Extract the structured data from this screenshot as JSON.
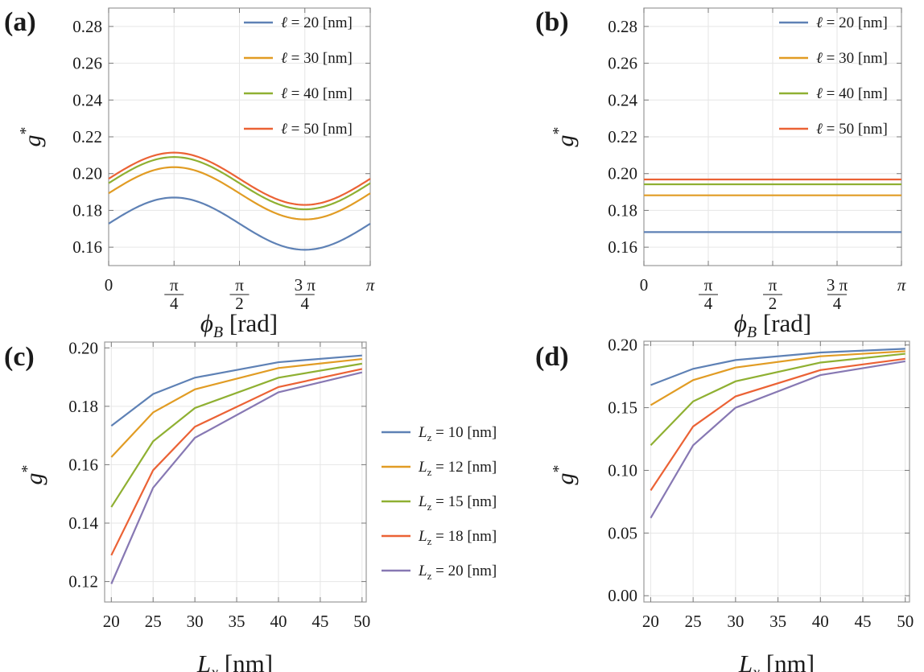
{
  "colors": {
    "blue": "#5e81b5",
    "orange": "#e19c24",
    "green": "#8fb032",
    "red": "#eb6235",
    "purple": "#8778b3"
  },
  "chart_data": [
    {
      "id": "a",
      "type": "line",
      "panel_label": "(a)",
      "xlabel_italic": "ϕ",
      "xlabel_sub": "B",
      "xlabel_rest": " [rad]",
      "ylabel": "g",
      "ylabel_sup": "*",
      "xlim": [
        0,
        3.14159
      ],
      "ylim": [
        0.15,
        0.29
      ],
      "yticks": [
        0.16,
        0.18,
        0.2,
        0.22,
        0.24,
        0.26,
        0.28
      ],
      "ytick_labels": [
        "0.16",
        "0.18",
        "0.20",
        "0.22",
        "0.24",
        "0.26",
        "0.28"
      ],
      "xticks": [
        0,
        0.7854,
        1.5708,
        2.3562,
        3.14159
      ],
      "xtick_labels": [
        "0",
        "π/4",
        "π/2",
        "3 π/4",
        "π"
      ],
      "legend_position": "top-right",
      "series": [
        {
          "name": "ℓ = 20 [nm]",
          "color": "#5e81b5",
          "mean": 0.1728,
          "amp": 0.0142
        },
        {
          "name": "ℓ = 30 [nm]",
          "color": "#e19c24",
          "mean": 0.1893,
          "amp": 0.0142
        },
        {
          "name": "ℓ = 40 [nm]",
          "color": "#8fb032",
          "mean": 0.1948,
          "amp": 0.0142
        },
        {
          "name": "ℓ = 50 [nm]",
          "color": "#eb6235",
          "mean": 0.1972,
          "amp": 0.0142
        }
      ]
    },
    {
      "id": "b",
      "type": "line",
      "panel_label": "(b)",
      "xlabel_italic": "ϕ",
      "xlabel_sub": "B",
      "xlabel_rest": " [rad]",
      "ylabel": "g",
      "ylabel_sup": "*",
      "xlim": [
        0,
        3.14159
      ],
      "ylim": [
        0.15,
        0.29
      ],
      "yticks": [
        0.16,
        0.18,
        0.2,
        0.22,
        0.24,
        0.26,
        0.28
      ],
      "ytick_labels": [
        "0.16",
        "0.18",
        "0.20",
        "0.22",
        "0.24",
        "0.26",
        "0.28"
      ],
      "xticks": [
        0,
        0.7854,
        1.5708,
        2.3562,
        3.14159
      ],
      "xtick_labels": [
        "0",
        "π/4",
        "π/2",
        "3 π/4",
        "π"
      ],
      "legend_position": "top-right",
      "series": [
        {
          "name": "ℓ = 20 [nm]",
          "color": "#5e81b5",
          "mean": 0.1682,
          "amp": 0
        },
        {
          "name": "ℓ = 30 [nm]",
          "color": "#e19c24",
          "mean": 0.1882,
          "amp": 0
        },
        {
          "name": "ℓ = 40 [nm]",
          "color": "#8fb032",
          "mean": 0.1942,
          "amp": 0
        },
        {
          "name": "ℓ = 50 [nm]",
          "color": "#eb6235",
          "mean": 0.1968,
          "amp": 0
        }
      ]
    },
    {
      "id": "c",
      "type": "line",
      "panel_label": "(c)",
      "xlabel_italic": "L",
      "xlabel_sub": "x",
      "xlabel_rest": " [nm]",
      "ylabel": "g",
      "ylabel_sup": "*",
      "xlim": [
        19.2,
        50.5
      ],
      "ylim": [
        0.113,
        0.202
      ],
      "yticks": [
        0.12,
        0.14,
        0.16,
        0.18,
        0.2
      ],
      "ytick_labels": [
        "0.12",
        "0.14",
        "0.16",
        "0.18",
        "0.20"
      ],
      "xticks": [
        20,
        25,
        30,
        35,
        40,
        45,
        50
      ],
      "xtick_labels": [
        "20",
        "25",
        "30",
        "35",
        "40",
        "45",
        "50"
      ],
      "legend_position": "right-outside",
      "x": [
        20,
        25,
        30,
        40,
        50
      ],
      "series": [
        {
          "name_italic": "L",
          "name_sub": "z",
          "name_rest": " = 10 [nm]",
          "color": "#5e81b5",
          "values": [
            0.1733,
            0.1842,
            0.1898,
            0.1951,
            0.1974
          ]
        },
        {
          "name_italic": "L",
          "name_sub": "z",
          "name_rest": " = 12 [nm]",
          "color": "#e19c24",
          "values": [
            0.1626,
            0.1779,
            0.1858,
            0.1931,
            0.1962
          ]
        },
        {
          "name_italic": "L",
          "name_sub": "z",
          "name_rest": " = 15 [nm]",
          "color": "#8fb032",
          "values": [
            0.1455,
            0.168,
            0.1794,
            0.1898,
            0.1946
          ]
        },
        {
          "name_italic": "L",
          "name_sub": "z",
          "name_rest": " = 18 [nm]",
          "color": "#eb6235",
          "values": [
            0.129,
            0.1581,
            0.173,
            0.1866,
            0.1928
          ]
        },
        {
          "name_italic": "L",
          "name_sub": "z",
          "name_rest": " = 20 [nm]",
          "color": "#8778b3",
          "values": [
            0.1192,
            0.1521,
            0.1692,
            0.1848,
            0.1916
          ]
        }
      ]
    },
    {
      "id": "d",
      "type": "line",
      "panel_label": "(d)",
      "xlabel_italic": "L",
      "xlabel_sub": "x",
      "xlabel_rest": " [nm]",
      "ylabel": "g",
      "ylabel_sup": "*",
      "xlim": [
        19.2,
        50.5
      ],
      "ylim": [
        -0.005,
        0.203
      ],
      "yticks": [
        0.0,
        0.05,
        0.1,
        0.15,
        0.2
      ],
      "ytick_labels": [
        "0.00",
        "0.05",
        "0.10",
        "0.15",
        "0.20"
      ],
      "xticks": [
        20,
        25,
        30,
        35,
        40,
        45,
        50
      ],
      "xtick_labels": [
        "20",
        "25",
        "30",
        "35",
        "40",
        "45",
        "50"
      ],
      "legend_position": "none",
      "x": [
        20,
        25,
        30,
        40,
        50
      ],
      "series": [
        {
          "color": "#5e81b5",
          "values": [
            0.168,
            0.181,
            0.188,
            0.194,
            0.197
          ]
        },
        {
          "color": "#e19c24",
          "values": [
            0.152,
            0.172,
            0.182,
            0.191,
            0.195
          ]
        },
        {
          "color": "#8fb032",
          "values": [
            0.12,
            0.155,
            0.171,
            0.186,
            0.193
          ]
        },
        {
          "color": "#eb6235",
          "values": [
            0.084,
            0.135,
            0.159,
            0.18,
            0.189
          ]
        },
        {
          "color": "#8778b3",
          "values": [
            0.062,
            0.12,
            0.15,
            0.176,
            0.187
          ]
        }
      ]
    }
  ]
}
